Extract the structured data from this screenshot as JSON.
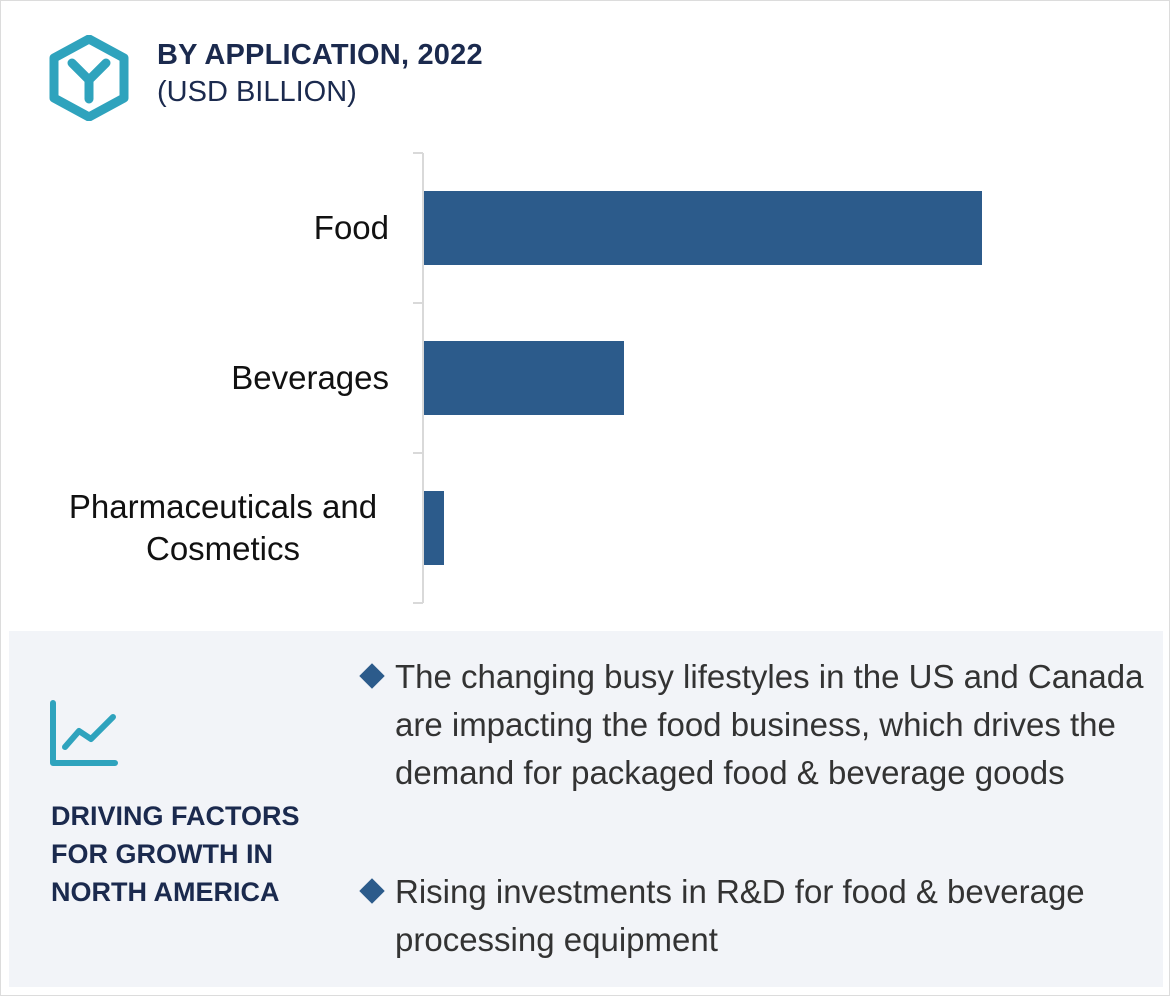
{
  "header": {
    "title": "BY APPLICATION, 2022",
    "subtitle": "(USD BILLION)",
    "logo_icon": "hexagon-y-logo-icon",
    "accent_color": "#2fa3bd"
  },
  "chart_data": {
    "type": "bar",
    "orientation": "horizontal",
    "categories": [
      "Food",
      "Beverages",
      "Pharmaceuticals and Cosmetics"
    ],
    "category_lines": [
      [
        "Food"
      ],
      [
        "Beverages"
      ],
      [
        "Pharmaceuticals and",
        "Cosmetics"
      ]
    ],
    "values": [
      27.9,
      10.0,
      1.0
    ],
    "xlim": [
      0,
      37.5
    ],
    "bar_color": "#2c5b8b",
    "grid": false,
    "legend": "none"
  },
  "drivers": {
    "icon": "line-chart-growth-icon",
    "title": "DRIVING FACTORS FOR GROWTH IN NORTH AMERICA",
    "points": [
      "The changing busy lifestyles in the US and Canada are impacting the food business, which drives the demand for packaged food & beverage goods",
      "Rising investments in R&D for food & beverage processing equipment"
    ]
  }
}
